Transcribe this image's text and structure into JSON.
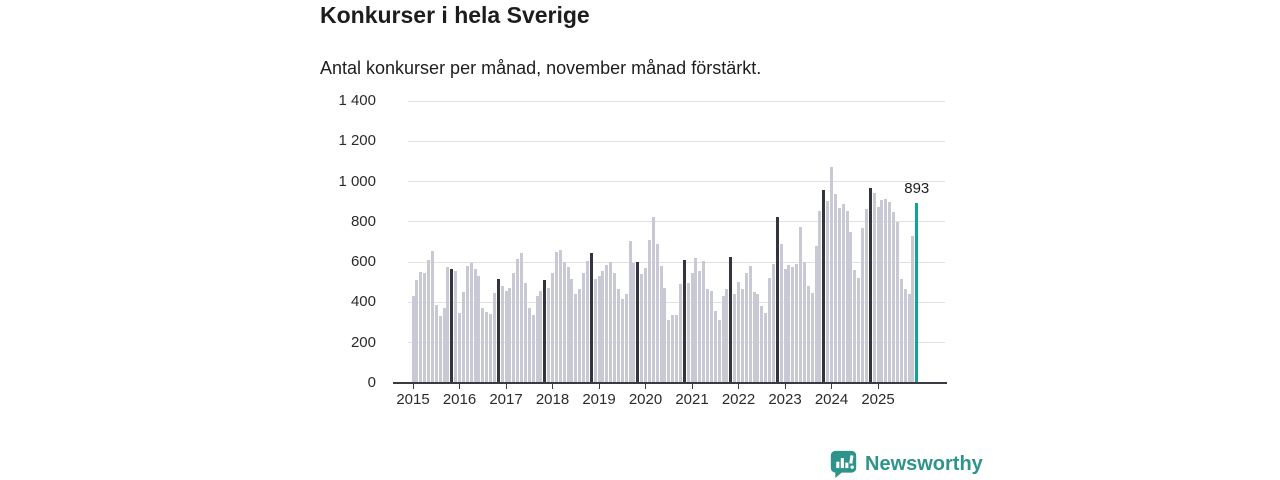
{
  "header": {
    "title": "Konkurser i hela Sverige",
    "subtitle": "Antal konkurser per månad, november månad förstärkt."
  },
  "chart_data": {
    "type": "bar",
    "title": "Konkurser i hela Sverige",
    "subtitle": "Antal konkurser per månad, november månad förstärkt.",
    "x_unit": "månad",
    "x_tick_labels": [
      "2015",
      "2016",
      "2017",
      "2018",
      "2019",
      "2020",
      "2021",
      "2022",
      "2023",
      "2024",
      "2025"
    ],
    "y_ticks": [
      0,
      200,
      400,
      600,
      800,
      1000,
      1200,
      1400
    ],
    "y_tick_labels": [
      "0",
      "200",
      "400",
      "600",
      "800",
      "1 000",
      "1 200",
      "1 400"
    ],
    "ylim": [
      0,
      1400
    ],
    "grid": "horizontal",
    "highlight_rule": "november bars darkened, latest bar (november 2025) teal",
    "series": [
      {
        "year": "2015",
        "values": [
          430,
          510,
          550,
          545,
          610,
          655,
          385,
          335,
          370,
          575,
          565,
          555
        ]
      },
      {
        "year": "2016",
        "values": [
          350,
          450,
          580,
          595,
          565,
          530,
          370,
          355,
          345,
          445,
          515,
          480
        ]
      },
      {
        "year": "2017",
        "values": [
          455,
          470,
          545,
          615,
          645,
          495,
          370,
          340,
          430,
          455,
          510,
          470
        ]
      },
      {
        "year": "2018",
        "values": [
          545,
          650,
          660,
          600,
          575,
          515,
          440,
          465,
          545,
          605,
          645,
          515
        ]
      },
      {
        "year": "2019",
        "values": [
          530,
          555,
          585,
          600,
          545,
          465,
          415,
          440,
          705,
          595,
          600,
          540
        ]
      },
      {
        "year": "2020",
        "values": [
          570,
          710,
          825,
          690,
          580,
          470,
          315,
          340,
          340,
          490,
          610,
          495
        ]
      },
      {
        "year": "2021",
        "values": [
          545,
          620,
          555,
          605,
          465,
          455,
          360,
          315,
          430,
          465,
          625,
          440
        ]
      },
      {
        "year": "2022",
        "values": [
          500,
          465,
          545,
          580,
          450,
          440,
          380,
          350,
          520,
          590,
          825,
          690
        ]
      },
      {
        "year": "2023",
        "values": [
          565,
          585,
          575,
          590,
          775,
          600,
          480,
          445,
          680,
          855,
          960,
          905
        ]
      },
      {
        "year": "2024",
        "values": [
          1070,
          940,
          870,
          890,
          855,
          750,
          560,
          520,
          770,
          865,
          970,
          945
        ]
      },
      {
        "year": "2025",
        "values": [
          875,
          910,
          915,
          900,
          850,
          800,
          515,
          465,
          440,
          730,
          893
        ]
      }
    ],
    "latest_point": {
      "year": "2025",
      "month_index": 10,
      "value": 893,
      "label": "893"
    },
    "colors": {
      "default_bar": "#c9c9d5",
      "november_bar": "#34343f",
      "latest_bar": "#10a398",
      "gridline": "#e0e0e3",
      "axis": "#3a3a40",
      "label_text": "#2b2b2b"
    }
  },
  "annotation": {
    "latest_value_label": "893"
  },
  "footer": {
    "brand": "Newsworthy",
    "brand_color": "#2e948b",
    "logo_icon": "bar-chart-speech-bubble-icon"
  }
}
